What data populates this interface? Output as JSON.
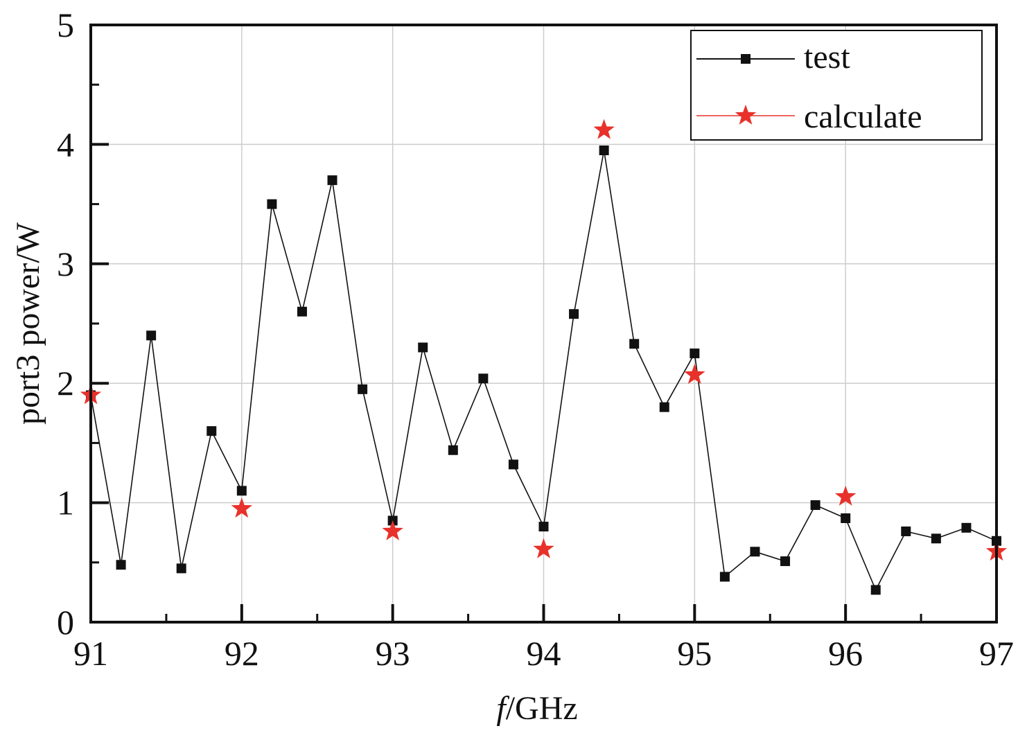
{
  "chart_data": {
    "type": "line",
    "xlabel_italic": "f",
    "xlabel_rest": "/GHz",
    "ylabel": "port3 power/W",
    "xlim": [
      91,
      97
    ],
    "ylim": [
      0,
      5
    ],
    "x_ticks": [
      "91",
      "92",
      "93",
      "94",
      "95",
      "96",
      "97"
    ],
    "y_ticks": [
      "0",
      "1",
      "2",
      "3",
      "4",
      "5"
    ],
    "grid": true,
    "legend_position": "top-right",
    "series": [
      {
        "name": "test",
        "marker": "square",
        "color": "#111111",
        "x": [
          91.0,
          91.2,
          91.4,
          91.6,
          91.8,
          92.0,
          92.2,
          92.4,
          92.6,
          92.8,
          93.0,
          93.2,
          93.4,
          93.6,
          93.8,
          94.0,
          94.2,
          94.4,
          94.6,
          94.8,
          95.0,
          95.2,
          95.4,
          95.6,
          95.8,
          96.0,
          96.2,
          96.4,
          96.6,
          96.8,
          97.0
        ],
        "y": [
          1.9,
          0.48,
          2.4,
          0.45,
          1.6,
          1.1,
          3.5,
          2.6,
          3.7,
          1.95,
          0.85,
          2.3,
          1.44,
          2.04,
          1.32,
          0.8,
          2.58,
          3.95,
          2.33,
          1.8,
          2.25,
          0.38,
          0.59,
          0.51,
          0.98,
          0.87,
          0.27,
          0.76,
          0.7,
          0.79,
          0.68
        ]
      },
      {
        "name": "calculate",
        "marker": "star",
        "color": "#e8312a",
        "x": [
          91.0,
          92.0,
          93.0,
          94.0,
          94.4,
          95.0,
          96.0,
          97.0
        ],
        "y": [
          1.9,
          0.95,
          0.76,
          0.61,
          4.12,
          2.07,
          1.05,
          0.59
        ]
      }
    ]
  }
}
